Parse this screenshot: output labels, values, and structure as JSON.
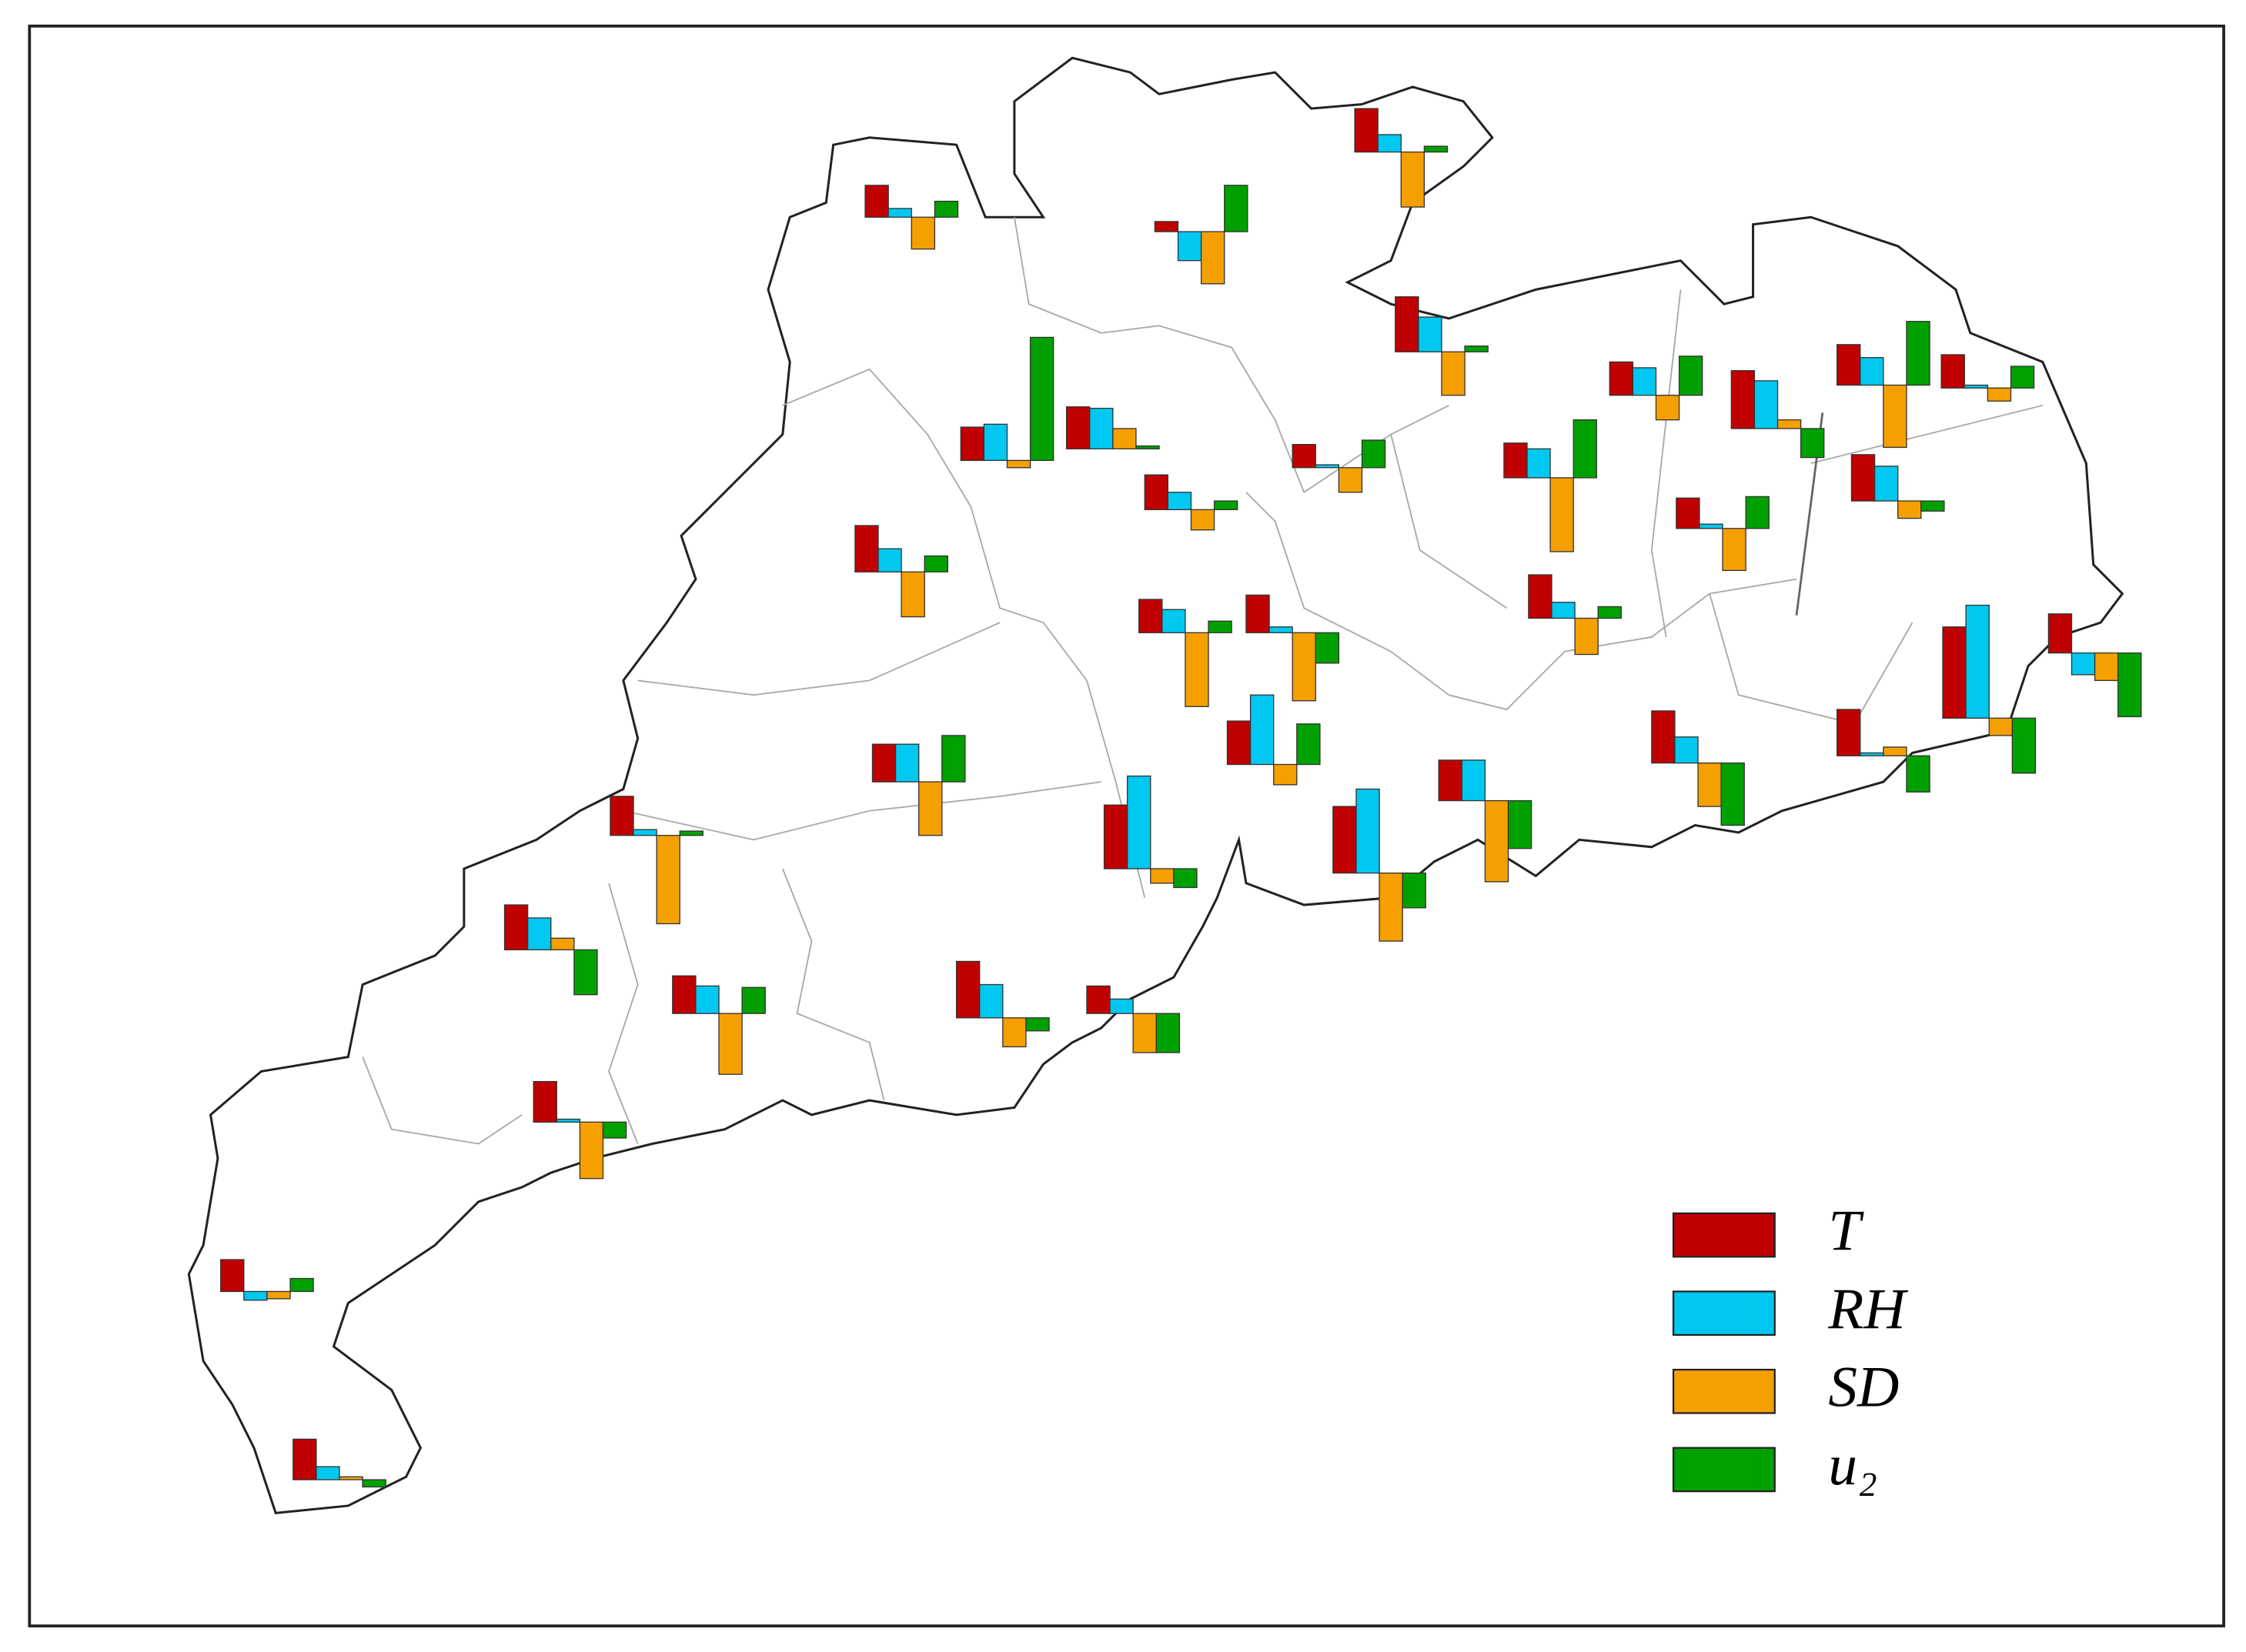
{
  "series": [
    {
      "name": "T",
      "color": "#c00000"
    },
    {
      "name": "RH",
      "color": "#00c8f0"
    },
    {
      "name": "SD",
      "color": "#f5a000"
    },
    {
      "name": "u₂",
      "color": "#00a000"
    }
  ],
  "stations": [
    {
      "values": [
        22,
        6,
        -22,
        11
      ]
    },
    {
      "values": [
        7,
        -20,
        -36,
        32
      ]
    },
    {
      "values": [
        30,
        12,
        -38,
        4
      ]
    },
    {
      "values": [
        38,
        24,
        -30,
        4
      ]
    },
    {
      "values": [
        23,
        25,
        -5,
        85
      ]
    },
    {
      "values": [
        29,
        28,
        14,
        2
      ]
    },
    {
      "values": [
        24,
        12,
        -14,
        6
      ]
    },
    {
      "values": [
        16,
        2,
        -17,
        19
      ]
    },
    {
      "values": [
        32,
        16,
        -31,
        11
      ]
    },
    {
      "values": [
        23,
        16,
        -51,
        8
      ]
    },
    {
      "values": [
        26,
        4,
        -47,
        -21
      ]
    },
    {
      "values": [
        30,
        48,
        -14,
        28
      ]
    },
    {
      "values": [
        26,
        26,
        -37,
        32
      ]
    },
    {
      "values": [
        44,
        64,
        -10,
        -13
      ]
    },
    {
      "values": [
        27,
        4,
        -61,
        3
      ]
    },
    {
      "values": [
        31,
        22,
        8,
        -31
      ]
    },
    {
      "values": [
        26,
        19,
        -42,
        18
      ]
    },
    {
      "values": [
        39,
        23,
        -20,
        -9
      ]
    },
    {
      "values": [
        19,
        10,
        -27,
        -27
      ]
    },
    {
      "values": [
        28,
        2,
        -39,
        -11
      ]
    },
    {
      "values": [
        46,
        58,
        -47,
        -24
      ]
    },
    {
      "values": [
        28,
        28,
        -56,
        -33
      ]
    },
    {
      "values": [
        24,
        20,
        -51,
        40
      ]
    },
    {
      "values": [
        23,
        19,
        -17,
        27
      ]
    },
    {
      "values": [
        30,
        11,
        -25,
        8
      ]
    },
    {
      "values": [
        36,
        18,
        -30,
        -43
      ]
    },
    {
      "values": [
        40,
        33,
        6,
        -20
      ]
    },
    {
      "values": [
        21,
        3,
        -29,
        22
      ]
    },
    {
      "values": [
        28,
        19,
        -43,
        44
      ]
    },
    {
      "values": [
        32,
        24,
        -12,
        -7
      ]
    },
    {
      "values": [
        23,
        2,
        -9,
        15
      ]
    },
    {
      "values": [
        32,
        2,
        6,
        -25
      ]
    },
    {
      "values": [
        63,
        78,
        -12,
        -38
      ]
    },
    {
      "values": [
        27,
        -15,
        -19,
        -44
      ]
    },
    {
      "values": [
        22,
        -6,
        -5,
        9
      ]
    },
    {
      "values": [
        28,
        9,
        2,
        -5
      ]
    }
  ]
}
